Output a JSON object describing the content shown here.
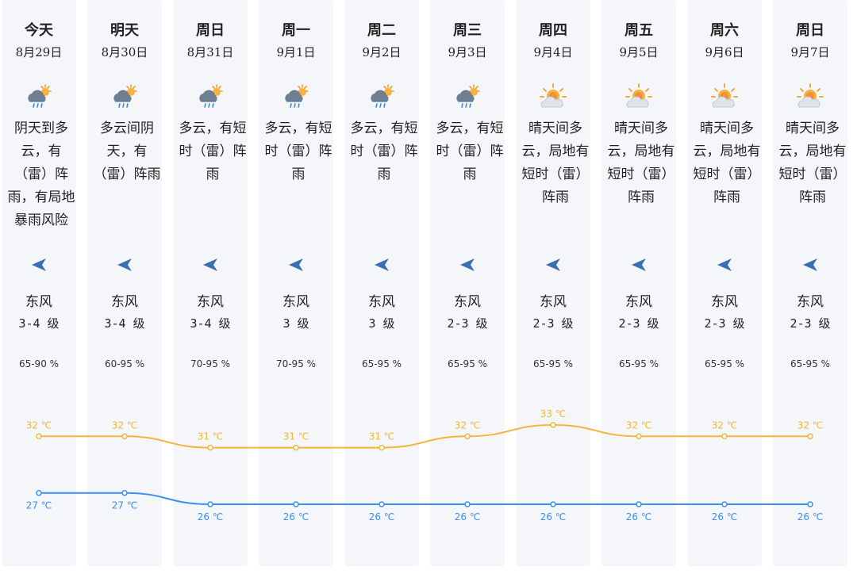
{
  "colors": {
    "high": "#f5b53a",
    "low": "#3d8ef0",
    "column_bg": "#f4f6fa",
    "wind_arrow": "#3d6fb3"
  },
  "days": [
    {
      "name": "今天",
      "date": "8月29日",
      "icon": "cloud-rain-sun-icon",
      "desc": "阴天到多云，有（雷）阵雨，有局地暴雨风险",
      "wind_dir": "东风",
      "wind_level": "3-4 级",
      "humidity": "65-90 %"
    },
    {
      "name": "明天",
      "date": "8月30日",
      "icon": "cloud-rain-sun-icon",
      "desc": "多云间阴天，有（雷）阵雨",
      "wind_dir": "东风",
      "wind_level": "3-4 级",
      "humidity": "60-95 %"
    },
    {
      "name": "周日",
      "date": "8月31日",
      "icon": "cloud-rain-sun-icon",
      "desc": "多云，有短时（雷）阵雨",
      "wind_dir": "东风",
      "wind_level": "3-4 级",
      "humidity": "70-95 %"
    },
    {
      "name": "周一",
      "date": "9月1日",
      "icon": "cloud-rain-sun-icon",
      "desc": "多云，有短时（雷）阵雨",
      "wind_dir": "东风",
      "wind_level": "3 级",
      "humidity": "70-95 %"
    },
    {
      "name": "周二",
      "date": "9月2日",
      "icon": "cloud-rain-sun-icon",
      "desc": "多云，有短时（雷）阵雨",
      "wind_dir": "东风",
      "wind_level": "3 级",
      "humidity": "65-95 %"
    },
    {
      "name": "周三",
      "date": "9月3日",
      "icon": "cloud-rain-sun-icon",
      "desc": "多云，有短时（雷）阵雨",
      "wind_dir": "东风",
      "wind_level": "2-3 级",
      "humidity": "65-95 %"
    },
    {
      "name": "周四",
      "date": "9月4日",
      "icon": "sun-cloud-icon",
      "desc": "晴天间多云，局地有短时（雷）阵雨",
      "wind_dir": "东风",
      "wind_level": "2-3 级",
      "humidity": "65-95 %"
    },
    {
      "name": "周五",
      "date": "9月5日",
      "icon": "sun-cloud-icon",
      "desc": "晴天间多云，局地有短时（雷）阵雨",
      "wind_dir": "东风",
      "wind_level": "2-3 级",
      "humidity": "65-95 %"
    },
    {
      "name": "周六",
      "date": "9月6日",
      "icon": "sun-cloud-icon",
      "desc": "晴天间多云，局地有短时（雷）阵雨",
      "wind_dir": "东风",
      "wind_level": "2-3 级",
      "humidity": "65-95 %"
    },
    {
      "name": "周日",
      "date": "9月7日",
      "icon": "sun-cloud-icon",
      "desc": "晴天间多云，局地有短时（雷）阵雨",
      "wind_dir": "东风",
      "wind_level": "2-3 级",
      "humidity": "65-95 %"
    }
  ],
  "high_temps": [
    32,
    32,
    31,
    31,
    31,
    32,
    33,
    32,
    32,
    32
  ],
  "low_temps": [
    27,
    27,
    26,
    26,
    26,
    26,
    26,
    26,
    26,
    26
  ],
  "temp_unit": "℃"
}
